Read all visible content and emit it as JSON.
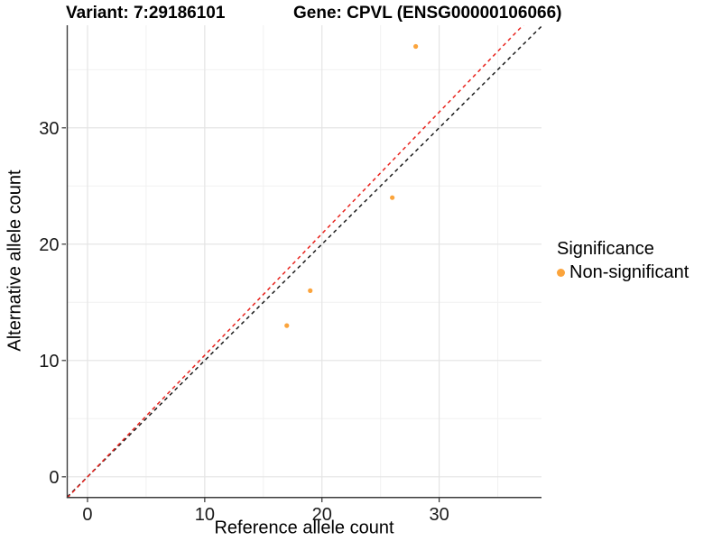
{
  "chart_data": {
    "type": "scatter",
    "title_left": "Variant: 7:29186101",
    "title_right": "Gene: CPVL (ENSG00000106066)",
    "xlabel": "Reference allele count",
    "ylabel": "Alternative allele count",
    "xlim": [
      -1.73,
      38.73
    ],
    "ylim": [
      -1.72,
      38.82
    ],
    "x_ticks": [
      0,
      10,
      20,
      30
    ],
    "y_ticks": [
      0,
      10,
      20,
      30
    ],
    "x_minor_ticks": [
      5,
      15,
      25,
      35
    ],
    "y_minor_ticks": [
      5,
      15,
      25,
      35
    ],
    "grid": true,
    "points": [
      {
        "x": 17,
        "y": 13
      },
      {
        "x": 19,
        "y": 16
      },
      {
        "x": 26,
        "y": 24
      },
      {
        "x": 28,
        "y": 37
      }
    ],
    "point_color": "#FBA43C",
    "point_radius": 2.6,
    "lines": [
      {
        "name": "identity-line",
        "slope": 1.0,
        "intercept": 0,
        "color": "#1C1C1C",
        "style": "dashed"
      },
      {
        "name": "expected-line",
        "slope": 1.045,
        "intercept": 0,
        "color": "#E8231D",
        "style": "dashed"
      }
    ],
    "colors": {
      "grid_major": "#E4E4E4",
      "grid_minor": "#F1F1F1",
      "axis_line": "#3C3C3C",
      "tick_mark": "#333333",
      "tick_label": "#1A1A1A"
    },
    "legend": {
      "title": "Significance",
      "position": "right",
      "items": [
        {
          "label": "Non-significant",
          "color": "#FBA43C"
        }
      ]
    }
  }
}
